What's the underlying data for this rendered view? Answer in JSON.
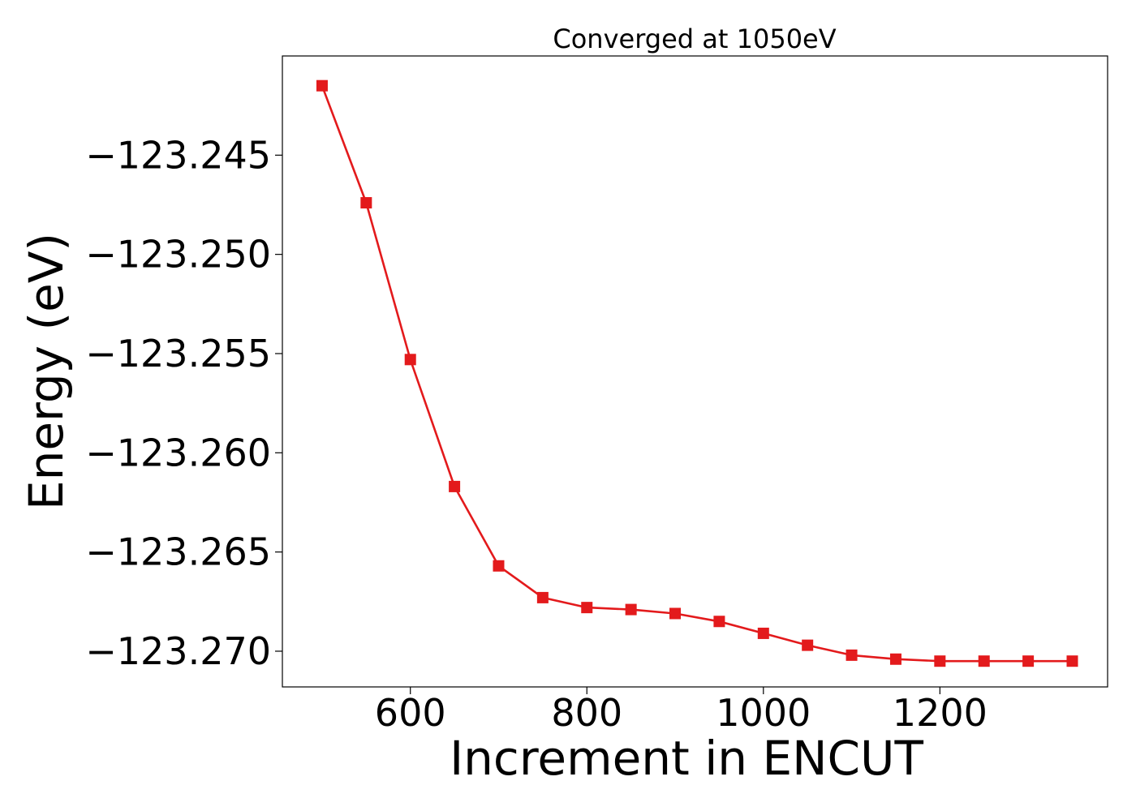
{
  "chart_data": {
    "type": "line",
    "title": "Converged at 1050eV",
    "xlabel": "Increment in ENCUT",
    "ylabel": "Energy (eV)",
    "xlim": [
      455,
      1390
    ],
    "ylim": [
      -123.2718,
      -123.24
    ],
    "x_ticks": [
      600,
      800,
      1000,
      1200
    ],
    "x_tick_labels": [
      "600",
      "800",
      "1000",
      "1200"
    ],
    "y_ticks": [
      -123.245,
      -123.25,
      -123.255,
      -123.26,
      -123.265,
      -123.27
    ],
    "y_tick_labels": [
      "−123.245",
      "−123.250",
      "−123.255",
      "−123.260",
      "−123.265",
      "−123.270"
    ],
    "grid": false,
    "series": [
      {
        "color": "#e31a1c",
        "marker": "square",
        "x": [
          500,
          550,
          600,
          650,
          700,
          750,
          800,
          850,
          900,
          950,
          1000,
          1050,
          1100,
          1150,
          1200,
          1250,
          1300,
          1350
        ],
        "y": [
          -123.2415,
          -123.2474,
          -123.2553,
          -123.2617,
          -123.2657,
          -123.2673,
          -123.2678,
          -123.2679,
          -123.2681,
          -123.2685,
          -123.2691,
          -123.2697,
          -123.2702,
          -123.2704,
          -123.2705,
          -123.2705,
          -123.2705,
          -123.2705
        ]
      }
    ]
  }
}
